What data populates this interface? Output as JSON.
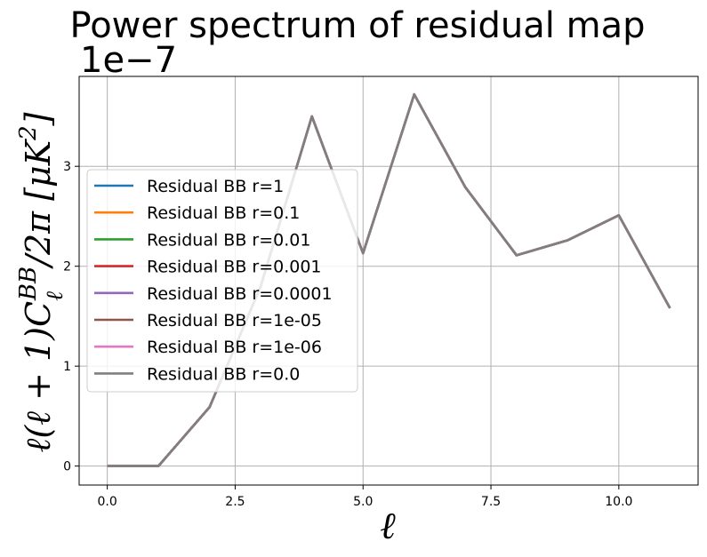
{
  "chart_data": {
    "type": "line",
    "title": "Power spectrum of residual map",
    "y_offset_text": "1e−7",
    "xlabel": "ℓ",
    "ylabel": "ℓ(ℓ + 1)CℓBB/2π [μK2]",
    "xlim": [
      -0.55,
      11.55
    ],
    "ylim": [
      -0.19,
      3.9
    ],
    "xticks": [
      0.0,
      2.5,
      5.0,
      7.5,
      10.0
    ],
    "xtick_labels": [
      "0.0",
      "2.5",
      "5.0",
      "7.5",
      "10.0"
    ],
    "yticks": [
      0,
      1,
      2,
      3
    ],
    "ytick_labels": [
      "0",
      "1",
      "2",
      "3"
    ],
    "y_scale_factor": 1e-07,
    "grid": true,
    "legend_position": "center-left",
    "x": [
      0,
      1,
      2,
      3,
      4,
      5,
      6,
      7,
      8,
      9,
      10,
      11
    ],
    "series": [
      {
        "name": "Residual BB r=1",
        "color": "#1f77b4",
        "values": [
          0,
          0,
          0.59,
          1.8,
          3.5,
          2.13,
          3.72,
          2.79,
          2.11,
          2.26,
          2.51,
          1.58
        ]
      },
      {
        "name": "Residual BB r=0.1",
        "color": "#ff7f0e",
        "values": [
          0,
          0,
          0.59,
          1.8,
          3.5,
          2.13,
          3.72,
          2.79,
          2.11,
          2.26,
          2.51,
          1.58
        ]
      },
      {
        "name": "Residual BB r=0.01",
        "color": "#2ca02c",
        "values": [
          0,
          0,
          0.59,
          1.8,
          3.5,
          2.13,
          3.72,
          2.79,
          2.11,
          2.26,
          2.51,
          1.58
        ]
      },
      {
        "name": "Residual BB r=0.001",
        "color": "#d62728",
        "values": [
          0,
          0,
          0.59,
          1.8,
          3.5,
          2.13,
          3.72,
          2.79,
          2.11,
          2.26,
          2.51,
          1.58
        ]
      },
      {
        "name": "Residual BB r=0.0001",
        "color": "#9467bd",
        "values": [
          0,
          0,
          0.59,
          1.8,
          3.5,
          2.13,
          3.72,
          2.79,
          2.11,
          2.26,
          2.51,
          1.58
        ]
      },
      {
        "name": "Residual BB r=1e-05",
        "color": "#8c564b",
        "values": [
          0,
          0,
          0.59,
          1.8,
          3.5,
          2.13,
          3.72,
          2.79,
          2.11,
          2.26,
          2.51,
          1.58
        ]
      },
      {
        "name": "Residual BB r=1e-06",
        "color": "#e377c2",
        "values": [
          0,
          0,
          0.59,
          1.8,
          3.5,
          2.13,
          3.72,
          2.79,
          2.11,
          2.26,
          2.51,
          1.58
        ]
      },
      {
        "name": "Residual BB r=0.0",
        "color": "#7f7f7f",
        "values": [
          0,
          0,
          0.59,
          1.8,
          3.5,
          2.13,
          3.72,
          2.79,
          2.11,
          2.26,
          2.51,
          1.58
        ]
      }
    ]
  }
}
